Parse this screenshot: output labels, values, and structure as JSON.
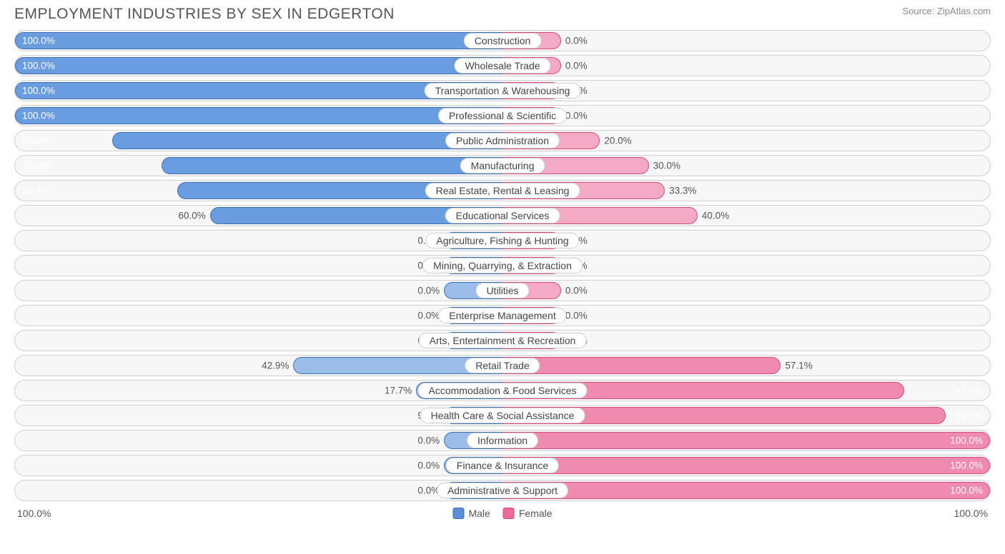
{
  "title": "EMPLOYMENT INDUSTRIES BY SEX IN EDGERTON",
  "source": "Source: ZipAtlas.com",
  "axis": {
    "left_label": "100.0%",
    "right_label": "100.0%"
  },
  "legend": {
    "male": {
      "label": "Male",
      "color": "#5a8fd6",
      "border": "#3d6fb5"
    },
    "female": {
      "label": "Female",
      "color": "#ec6a9a",
      "border": "#d64a7f"
    }
  },
  "style": {
    "male_fill": "#6a9de0",
    "male_fill_weak": "#9bbde8",
    "male_border": "#3d6fb5",
    "female_fill": "#f08bb0",
    "female_fill_weak": "#f4aac5",
    "female_border": "#d64a7f",
    "row_bg": "#f7f7f7",
    "row_border": "#d0d0d0",
    "label_text": "#444",
    "inside_text": "#ffffff",
    "outside_text": "#555",
    "half_width_pct": 50,
    "min_bar_width_pct": 12,
    "label_inside_threshold": 65
  },
  "rows": [
    {
      "category": "Construction",
      "male_pct": 100.0,
      "female_pct": 0.0,
      "male_label": "100.0%",
      "female_label": "0.0%"
    },
    {
      "category": "Wholesale Trade",
      "male_pct": 100.0,
      "female_pct": 0.0,
      "male_label": "100.0%",
      "female_label": "0.0%"
    },
    {
      "category": "Transportation & Warehousing",
      "male_pct": 100.0,
      "female_pct": 0.0,
      "male_label": "100.0%",
      "female_label": "0.0%"
    },
    {
      "category": "Professional & Scientific",
      "male_pct": 100.0,
      "female_pct": 0.0,
      "male_label": "100.0%",
      "female_label": "0.0%"
    },
    {
      "category": "Public Administration",
      "male_pct": 80.0,
      "female_pct": 20.0,
      "male_label": "80.0%",
      "female_label": "20.0%"
    },
    {
      "category": "Manufacturing",
      "male_pct": 70.0,
      "female_pct": 30.0,
      "male_label": "70.0%",
      "female_label": "30.0%"
    },
    {
      "category": "Real Estate, Rental & Leasing",
      "male_pct": 66.7,
      "female_pct": 33.3,
      "male_label": "66.7%",
      "female_label": "33.3%"
    },
    {
      "category": "Educational Services",
      "male_pct": 60.0,
      "female_pct": 40.0,
      "male_label": "60.0%",
      "female_label": "40.0%"
    },
    {
      "category": "Agriculture, Fishing & Hunting",
      "male_pct": 0.0,
      "female_pct": 0.0,
      "male_label": "0.0%",
      "female_label": "0.0%"
    },
    {
      "category": "Mining, Quarrying, & Extraction",
      "male_pct": 0.0,
      "female_pct": 0.0,
      "male_label": "0.0%",
      "female_label": "0.0%"
    },
    {
      "category": "Utilities",
      "male_pct": 0.0,
      "female_pct": 0.0,
      "male_label": "0.0%",
      "female_label": "0.0%"
    },
    {
      "category": "Enterprise Management",
      "male_pct": 0.0,
      "female_pct": 0.0,
      "male_label": "0.0%",
      "female_label": "0.0%"
    },
    {
      "category": "Arts, Entertainment & Recreation",
      "male_pct": 0.0,
      "female_pct": 0.0,
      "male_label": "0.0%",
      "female_label": "0.0%"
    },
    {
      "category": "Retail Trade",
      "male_pct": 42.9,
      "female_pct": 57.1,
      "male_label": "42.9%",
      "female_label": "57.1%"
    },
    {
      "category": "Accommodation & Food Services",
      "male_pct": 17.7,
      "female_pct": 82.4,
      "male_label": "17.7%",
      "female_label": "82.4%"
    },
    {
      "category": "Health Care & Social Assistance",
      "male_pct": 9.1,
      "female_pct": 90.9,
      "male_label": "9.1%",
      "female_label": "90.9%"
    },
    {
      "category": "Information",
      "male_pct": 0.0,
      "female_pct": 100.0,
      "male_label": "0.0%",
      "female_label": "100.0%"
    },
    {
      "category": "Finance & Insurance",
      "male_pct": 0.0,
      "female_pct": 100.0,
      "male_label": "0.0%",
      "female_label": "100.0%"
    },
    {
      "category": "Administrative & Support",
      "male_pct": 0.0,
      "female_pct": 100.0,
      "male_label": "0.0%",
      "female_label": "100.0%"
    }
  ]
}
